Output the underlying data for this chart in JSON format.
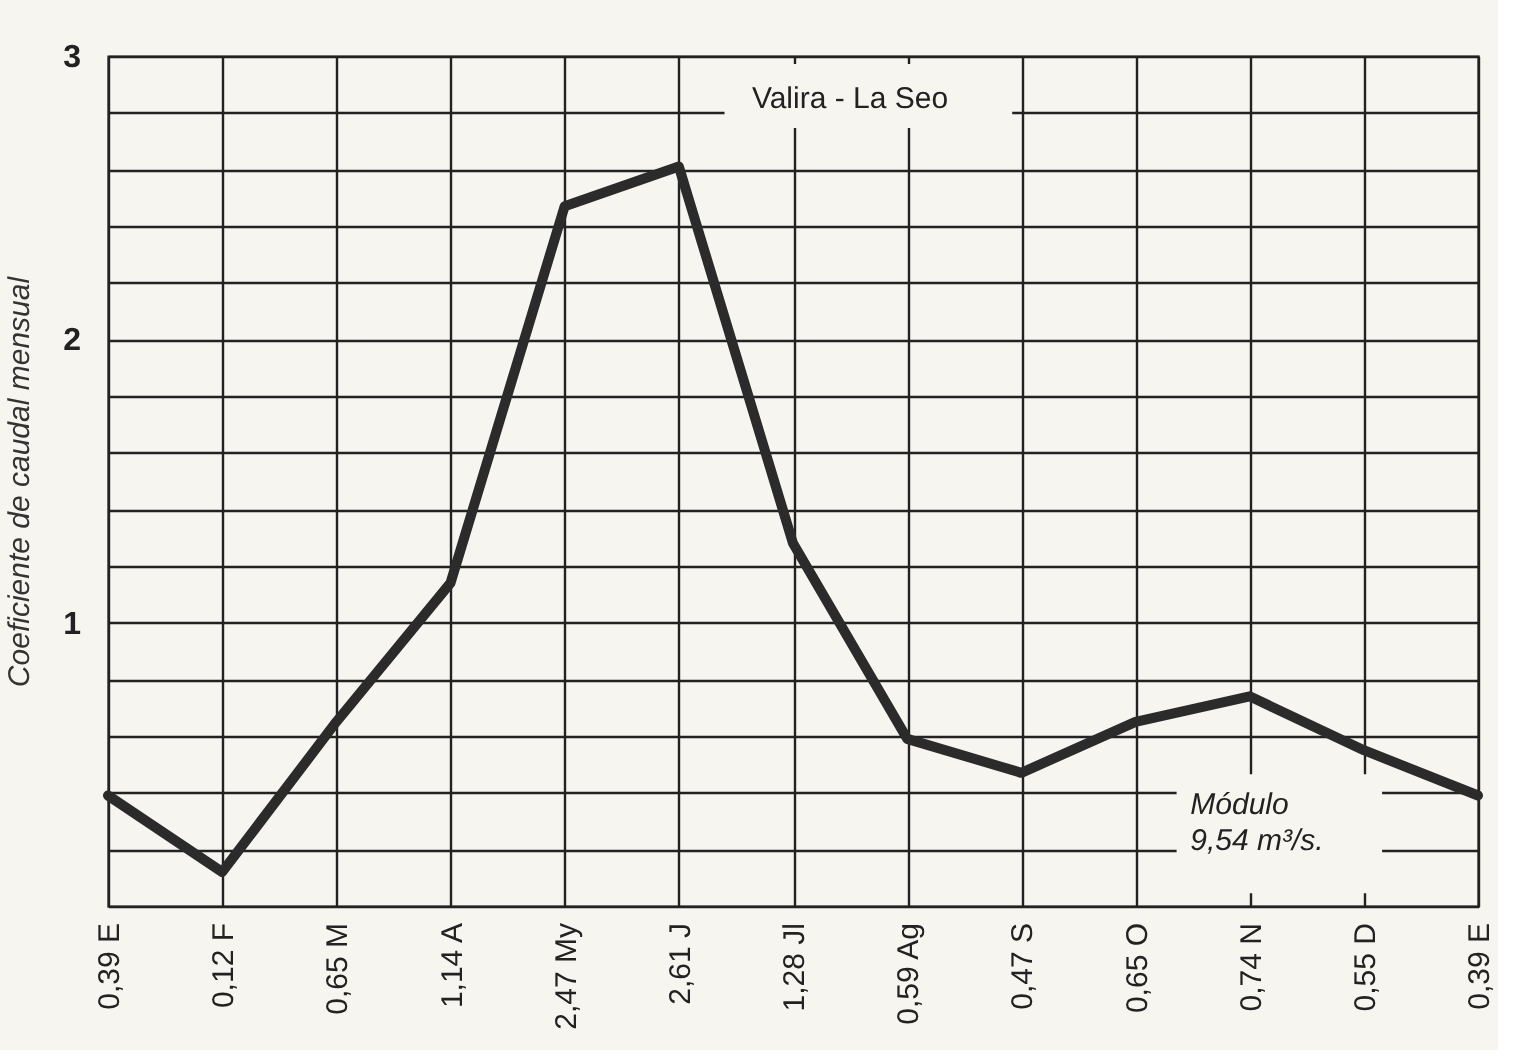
{
  "chart_data": {
    "type": "line",
    "title": "Valira - La Seo",
    "ylabel": "Coeficiente de caudal mensual",
    "categories": [
      "E",
      "F",
      "M",
      "A",
      "My",
      "J",
      "Jl",
      "Ag",
      "S",
      "O",
      "N",
      "D",
      "E"
    ],
    "series": [
      {
        "color": "#2b2b2b",
        "values": [
          0.39,
          0.12,
          0.65,
          1.14,
          2.47,
          2.61,
          1.28,
          0.59,
          0.47,
          0.65,
          0.74,
          0.55,
          0.39
        ],
        "value_labels": [
          "0,39",
          "0,12",
          "0,65",
          "1,14",
          "2,47",
          "2,61",
          "1,28",
          "0,59",
          "0,47",
          "0,65",
          "0,74",
          "0,55",
          "0,39"
        ]
      }
    ],
    "ylim": [
      0,
      3
    ],
    "yticks": [
      {
        "value": 0,
        "label": null
      },
      {
        "value": 0.2,
        "label": null
      },
      {
        "value": 0.4,
        "label": null
      },
      {
        "value": 0.6,
        "label": null
      },
      {
        "value": 0.8,
        "label": null
      },
      1,
      {
        "value": 1.2,
        "label": null
      },
      {
        "value": 1.4,
        "label": null
      },
      {
        "value": 1.6,
        "label": null
      },
      {
        "value": 1.8,
        "label": null
      },
      2,
      {
        "value": 2.2,
        "label": null
      },
      {
        "value": 2.4,
        "label": null
      },
      {
        "value": 2.6,
        "label": null
      },
      {
        "value": 2.8,
        "label": null
      },
      3
    ],
    "grid": true,
    "marker": "none",
    "line_style": "solid",
    "annotations": [
      "Módulo 9,54 m³/s."
    ]
  }
}
